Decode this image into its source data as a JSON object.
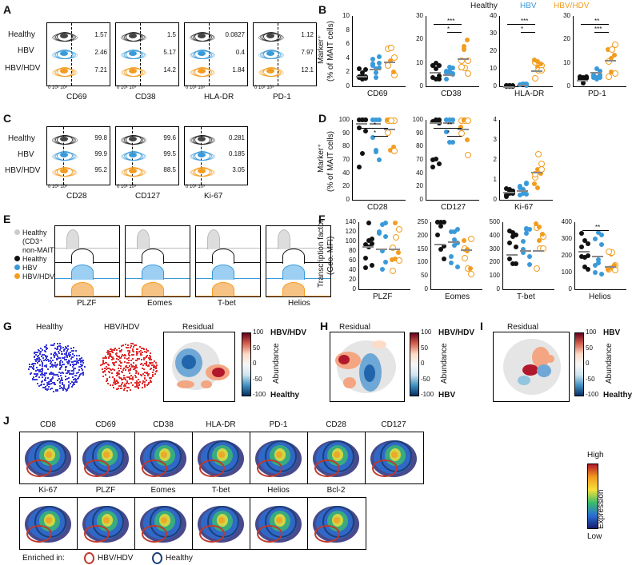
{
  "panels": {
    "A": "A",
    "B": "B",
    "C": "C",
    "D": "D",
    "E": "E",
    "F": "F",
    "G": "G",
    "H": "H",
    "I": "I",
    "J": "J"
  },
  "groups": {
    "healthy": "Healthy",
    "hbv": "HBV",
    "hbvhdv": "HBV/HDV"
  },
  "colors": {
    "healthy": "#111111",
    "hbv": "#3a9ad9",
    "hbvhdv": "#f39c1f",
    "residual_pos": "#b2182b",
    "residual_neg": "#2166ac"
  },
  "panelA": {
    "markers": [
      "CD69",
      "CD38",
      "HLA-DR",
      "PD-1"
    ],
    "values": [
      [
        "1.57",
        "2.46",
        "7.21"
      ],
      [
        "1.5",
        "5.17",
        "14.2"
      ],
      [
        "0.0827",
        "0.4",
        "1.84"
      ],
      [
        "1.12",
        "7.97",
        "12.1"
      ]
    ],
    "xtick": "0 10² 10³"
  },
  "panelB": {
    "ylabel": "Marker⁺\n(% of MAIT cells)",
    "legend": [
      "Healthy",
      "HBV",
      "HBV/HDV"
    ],
    "charts": [
      {
        "x": "CD69",
        "yticks": [
          "0",
          "2",
          "4",
          "6",
          "8",
          "10"
        ],
        "sig": [],
        "medians": [
          1.5,
          2.5,
          3.5
        ]
      },
      {
        "x": "CD38",
        "yticks": [
          "0",
          "10",
          "20",
          "30"
        ],
        "sig": [
          "***",
          "*"
        ],
        "medians": [
          7,
          6,
          14
        ]
      },
      {
        "x": "HLA-DR",
        "yticks": [
          "0",
          "10",
          "20",
          "30",
          "40"
        ],
        "sig": [
          "***",
          "*"
        ],
        "medians": [
          0.2,
          1,
          10
        ]
      },
      {
        "x": "PD-1",
        "yticks": [
          "0",
          "10",
          "20",
          "30"
        ],
        "sig": [
          "**",
          "***"
        ],
        "medians": [
          3,
          7,
          13
        ]
      }
    ]
  },
  "panelC": {
    "markers": [
      "CD28",
      "CD127",
      "Ki-67"
    ],
    "values": [
      [
        "99.8",
        "99.9",
        "95.2"
      ],
      [
        "99.6",
        "99.5",
        "88.5"
      ],
      [
        "0.281",
        "0.185",
        "3.05"
      ]
    ]
  },
  "panelD": {
    "ylabel": "Marker⁺\n(% of MAIT cells)",
    "charts": [
      {
        "x": "CD28",
        "yticks": [
          "0",
          "20",
          "40",
          "70",
          "80",
          "90",
          "100"
        ],
        "sig": [
          "*",
          "*"
        ],
        "medians": [
          96,
          96,
          89
        ]
      },
      {
        "x": "CD127",
        "yticks": [
          "0",
          "20",
          "40",
          "70",
          "80",
          "90",
          "100"
        ],
        "sig": [
          "**",
          "*"
        ],
        "medians": [
          97,
          97,
          89
        ]
      },
      {
        "x": "Ki-67",
        "yticks": [
          "0",
          "1",
          "2",
          "3",
          "4"
        ],
        "sig": [],
        "medians": [
          0.4,
          0.5,
          1.4
        ]
      }
    ]
  },
  "panelE": {
    "legend": [
      "Healthy",
      "(CD3⁺",
      "non-MAIT)",
      "Healthy",
      "HBV",
      "HBV/HDV"
    ],
    "markers": [
      "PLZF",
      "Eomes",
      "T-bet",
      "Helios"
    ]
  },
  "panelF": {
    "ylabel": "Transcription factor\n(Geo. MFI)",
    "charts": [
      {
        "x": "PLZF",
        "yticks": [
          "0",
          "20",
          "40",
          "60",
          "80",
          "100",
          "120",
          "140"
        ],
        "sig": [],
        "medians": [
          90,
          85,
          85
        ]
      },
      {
        "x": "Eomes",
        "yticks": [
          "0",
          "50",
          "100",
          "150",
          "200",
          "250"
        ],
        "sig": [],
        "medians": [
          170,
          180,
          150
        ]
      },
      {
        "x": "T-bet",
        "yticks": [
          "0",
          "100",
          "200",
          "300",
          "400",
          "500"
        ],
        "sig": [],
        "medians": [
          260,
          290,
          290
        ]
      },
      {
        "x": "Helios",
        "yticks": [
          "0",
          "100",
          "200",
          "300",
          "400"
        ],
        "sig": [
          "**"
        ],
        "medians": [
          230,
          200,
          140
        ]
      }
    ]
  },
  "panelG": {
    "titles": [
      "Healthy",
      "HBV/HDV",
      "Residual"
    ],
    "cbar": {
      "ticks": [
        "100",
        "50",
        "0",
        "-50",
        "-100"
      ],
      "top": "HBV/HDV",
      "bottom": "Healthy",
      "label": "Abundance"
    }
  },
  "panelH": {
    "title": "Residual",
    "cbar": {
      "ticks": [
        "100",
        "50",
        "0",
        "-50",
        "-100"
      ],
      "top": "HBV/HDV",
      "bottom": "HBV",
      "label": "Abundance"
    }
  },
  "panelI": {
    "title": "Residual",
    "cbar": {
      "ticks": [
        "100",
        "50",
        "0",
        "-50",
        "-100"
      ],
      "top": "HBV",
      "bottom": "Healthy",
      "label": "Abundance"
    }
  },
  "panelJ": {
    "row1": [
      "CD8",
      "CD69",
      "CD38",
      "HLA-DR",
      "PD-1",
      "CD28",
      "CD127"
    ],
    "row2": [
      "Ki-67",
      "PLZF",
      "Eomes",
      "T-bet",
      "Helios",
      "Bcl-2"
    ],
    "scale": {
      "high": "High",
      "low": "Low",
      "label": "Expression"
    },
    "enriched_label": "Enriched in:",
    "enriched": [
      "HBV/HDV",
      "Healthy"
    ]
  }
}
